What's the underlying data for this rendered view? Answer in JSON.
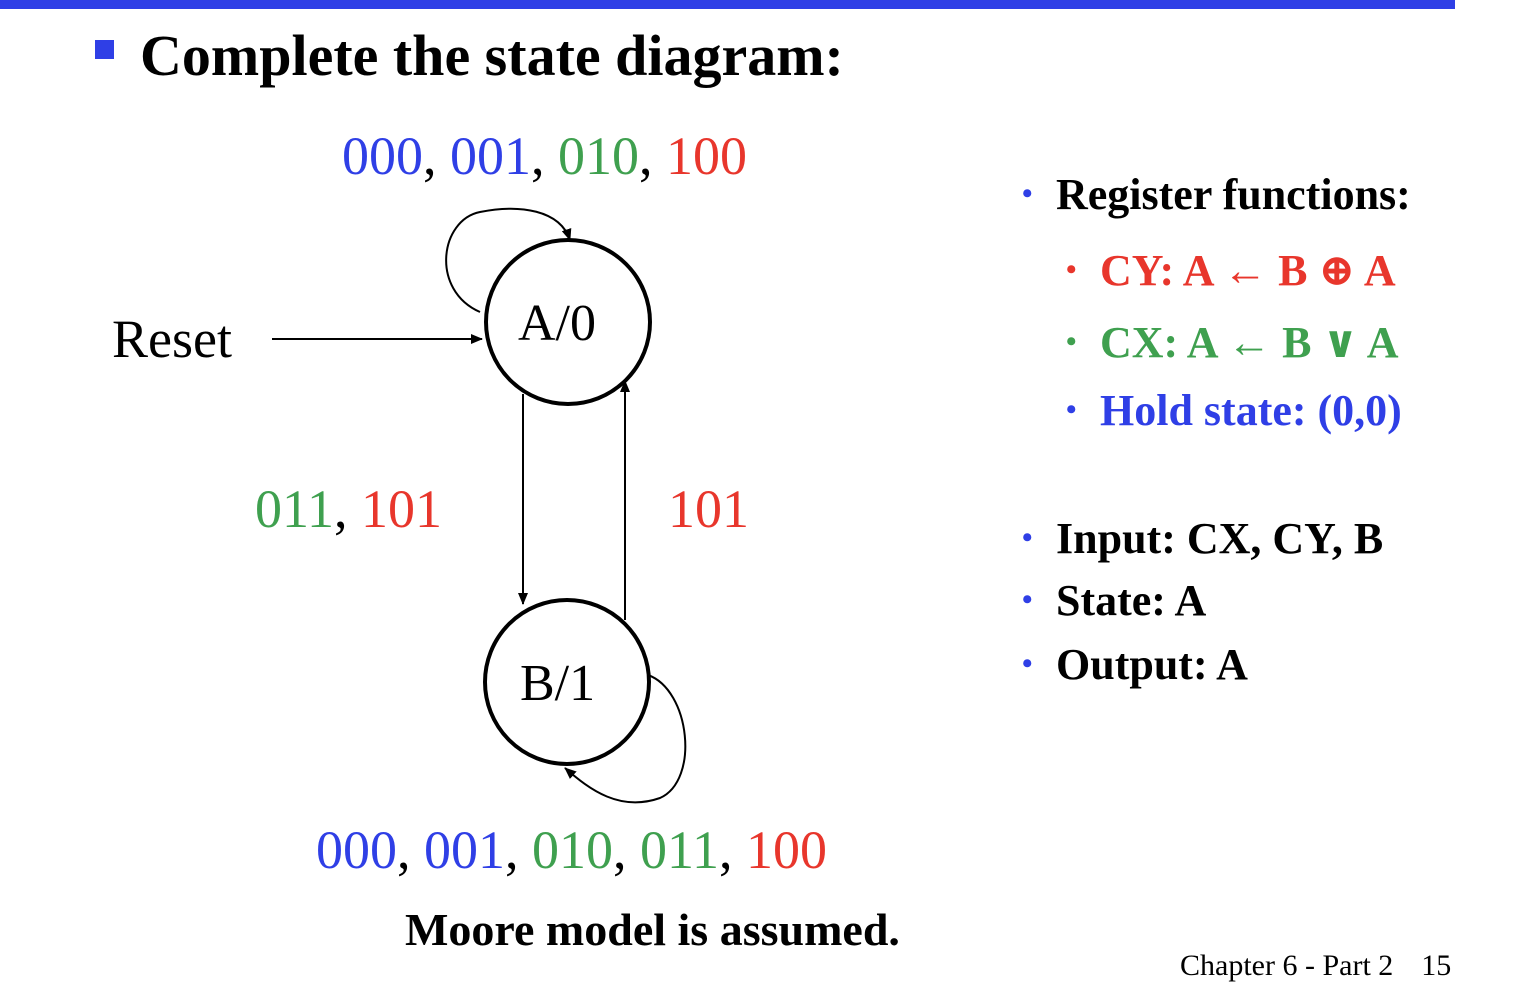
{
  "title": "Complete the state diagram:",
  "states": [
    {
      "id": "A",
      "label": "A/0"
    },
    {
      "id": "B",
      "label": "B/1"
    }
  ],
  "reset_label": "Reset",
  "transitions": {
    "a_self": [
      {
        "text": "000",
        "color": "#2f3fe6"
      },
      {
        "text": ", ",
        "color": "#000000"
      },
      {
        "text": "001",
        "color": "#2f3fe6"
      },
      {
        "text": ", ",
        "color": "#000000"
      },
      {
        "text": "010",
        "color": "#3fa04f"
      },
      {
        "text": ", ",
        "color": "#000000"
      },
      {
        "text": "100",
        "color": "#e8362c"
      }
    ],
    "a_to_b": [
      {
        "text": "011",
        "color": "#3fa04f"
      },
      {
        "text": ", ",
        "color": "#000000"
      },
      {
        "text": "101",
        "color": "#e8362c"
      }
    ],
    "b_to_a": [
      {
        "text": "101",
        "color": "#e8362c"
      }
    ],
    "b_self": [
      {
        "text": "000",
        "color": "#2f3fe6"
      },
      {
        "text": ", ",
        "color": "#000000"
      },
      {
        "text": "001",
        "color": "#2f3fe6"
      },
      {
        "text": ", ",
        "color": "#000000"
      },
      {
        "text": "010",
        "color": "#3fa04f"
      },
      {
        "text": ", ",
        "color": "#000000"
      },
      {
        "text": "011",
        "color": "#3fa04f"
      },
      {
        "text": ", ",
        "color": "#000000"
      },
      {
        "text": "100",
        "color": "#e8362c"
      }
    ]
  },
  "register_functions": {
    "heading": "Register functions:",
    "items": [
      {
        "text": "CY: A ← B ⊕ A",
        "color": "#e8362c"
      },
      {
        "text": "CX: A ← B ∨ A",
        "color": "#3fa04f"
      },
      {
        "text": "Hold state: (0,0)",
        "color": "#2f3fe6"
      }
    ]
  },
  "facts": [
    "Input: CX, CY, B",
    "State:  A",
    "Output: A"
  ],
  "note": "Moore model is assumed.",
  "footer": {
    "chapter": "Chapter 6 - Part 2",
    "page": "15"
  },
  "colors": {
    "accent": "#2f3fe6",
    "green": "#3fa04f",
    "red": "#e8362c"
  }
}
